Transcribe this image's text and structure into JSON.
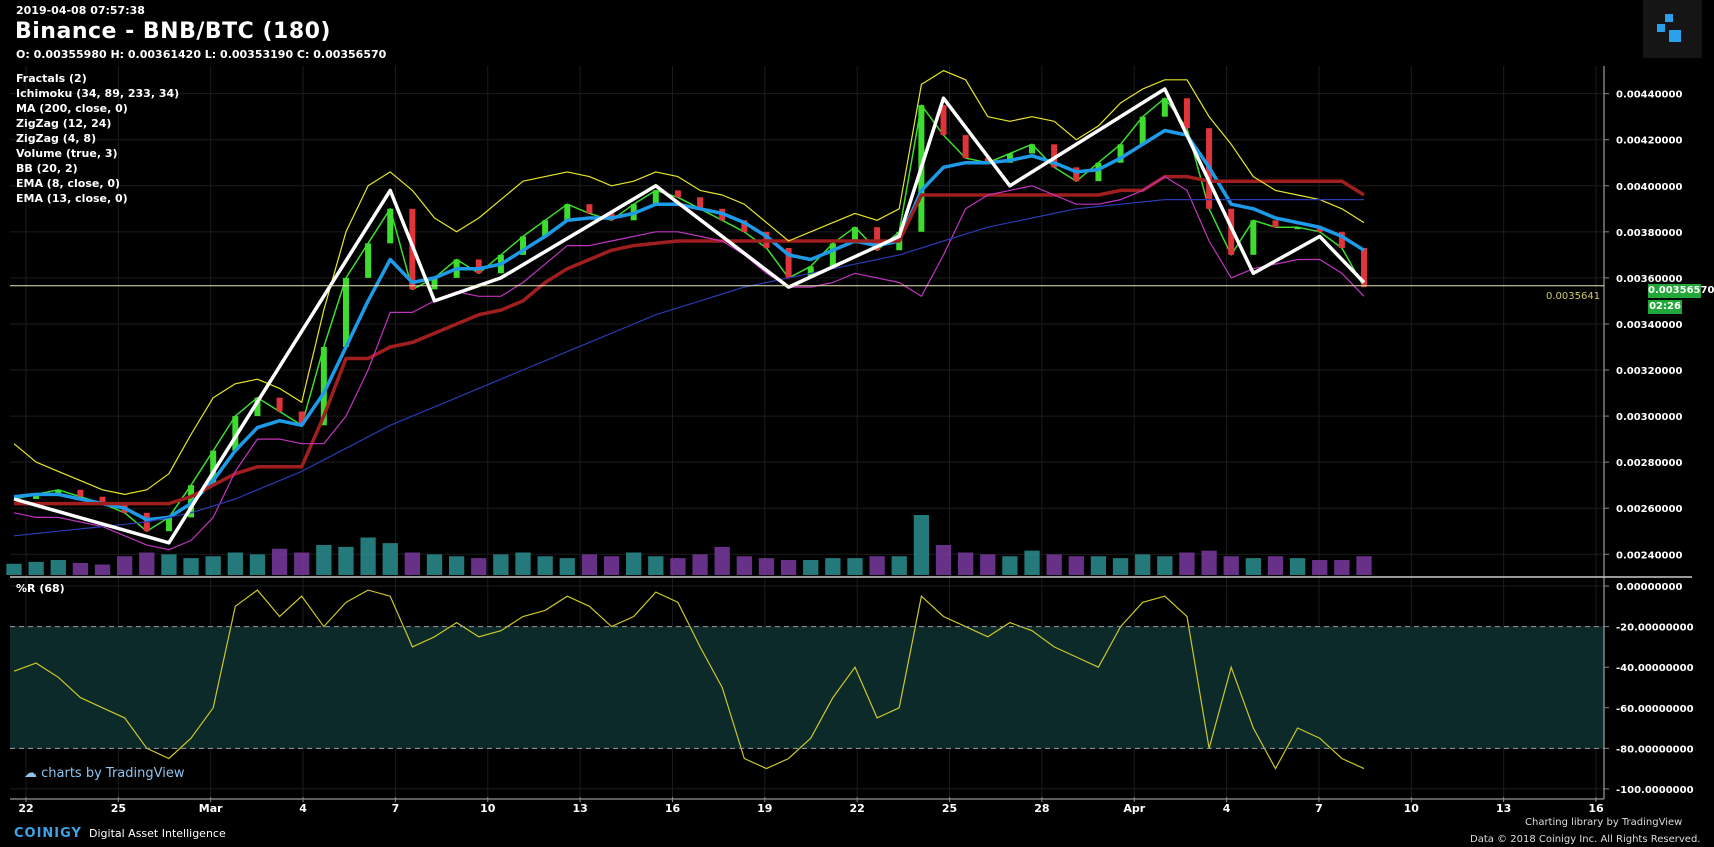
{
  "header": {
    "datetime": "2019-04-08 07:57:38",
    "title": "Binance - BNB/BTC (180)",
    "ohlc": "O: 0.00355980 H: 0.00361420 L: 0.00353190 C: 0.00356570"
  },
  "indicators": [
    "Fractals (2)",
    "Ichimoku (34, 89, 233, 34)",
    "MA (200, close, 0)",
    "ZigZag (12, 24)",
    "ZigZag (4, 8)",
    "Volume (true, 3)",
    "BB (20, 2)",
    "EMA (8, close, 0)",
    "EMA (13, close, 0)"
  ],
  "oscillator": {
    "title": "%R (68)"
  },
  "price_tags": {
    "last_price": "0.00356570",
    "countdown": "02:26",
    "line_value": "0.0035641"
  },
  "branding": {
    "tv_prefix": "charts by ",
    "tv_name": "TradingView",
    "coinigy": "COINIGY",
    "coinigy_tag": "Digital Asset Intelligence",
    "charting_lib": "Charting library by  TradingView",
    "copyright": "Data © 2018  Coinigy Inc. All Rights Reserved."
  },
  "colors": {
    "background": "#000000",
    "grid": "#1c1c1c",
    "up_candle": "#3ddc2f",
    "down_candle": "#e0343b",
    "zigzag": "#ffffff",
    "ema8": "#7a3be0",
    "ema13": "#1e9be8",
    "ichimoku_base": "#a01e1e",
    "bollinger": "#e6e62a",
    "bollinger_lower": "#c035c0",
    "ma200": "#2a3ab0",
    "williams_r": "#c9c62a",
    "oversold_band": "#0d2a2a",
    "price_tag": "#22a83a"
  },
  "chart_data": [
    {
      "type": "line",
      "title": "Binance - BNB/BTC (180)",
      "xlabel": "",
      "ylabel": "",
      "x_ticks": [
        "22",
        "25",
        "Mar",
        "4",
        "7",
        "10",
        "13",
        "16",
        "19",
        "22",
        "25",
        "28",
        "Apr",
        "4",
        "7",
        "10",
        "13",
        "16"
      ],
      "y_ticks": [
        "0.00240000",
        "0.00260000",
        "0.00280000",
        "0.00300000",
        "0.00320000",
        "0.00340000",
        "0.00360000",
        "0.00380000",
        "0.00400000",
        "0.00420000",
        "0.00440000"
      ],
      "ylim": [
        0.00231,
        0.00452
      ],
      "current_price": 0.0035657,
      "grid": true,
      "series": [
        {
          "key": "price",
          "values": [
            0.00264,
            0.00266,
            0.00268,
            0.00265,
            0.00262,
            0.00258,
            0.0025,
            0.00256,
            0.0027,
            0.00285,
            0.003,
            0.00308,
            0.00302,
            0.00296,
            0.0033,
            0.0036,
            0.00375,
            0.0039,
            0.00355,
            0.0036,
            0.00368,
            0.00362,
            0.0037,
            0.00378,
            0.00385,
            0.00392,
            0.00388,
            0.00385,
            0.00392,
            0.00398,
            0.00395,
            0.0039,
            0.00385,
            0.0038,
            0.00373,
            0.0036,
            0.00365,
            0.00375,
            0.00382,
            0.00372,
            0.0038,
            0.00435,
            0.00422,
            0.00412,
            0.0041,
            0.00414,
            0.00418,
            0.00408,
            0.00402,
            0.0041,
            0.00418,
            0.0043,
            0.00438,
            0.00425,
            0.0039,
            0.0037,
            0.00385,
            0.00382,
            0.00382,
            0.0038,
            0.00373,
            0.00356
          ]
        },
        {
          "key": "ema13",
          "values": [
            0.00265,
            0.00266,
            0.00266,
            0.00264,
            0.00262,
            0.0026,
            0.00255,
            0.00256,
            0.00262,
            0.00272,
            0.00285,
            0.00295,
            0.00298,
            0.00296,
            0.0031,
            0.0033,
            0.0035,
            0.00368,
            0.00358,
            0.0036,
            0.00364,
            0.00364,
            0.00366,
            0.00372,
            0.00378,
            0.00385,
            0.00386,
            0.00386,
            0.00388,
            0.00392,
            0.00392,
            0.0039,
            0.00388,
            0.00384,
            0.00378,
            0.0037,
            0.00368,
            0.00372,
            0.00376,
            0.00374,
            0.00376,
            0.00398,
            0.00408,
            0.0041,
            0.0041,
            0.00411,
            0.00413,
            0.0041,
            0.00406,
            0.00407,
            0.00412,
            0.00418,
            0.00424,
            0.00422,
            0.00408,
            0.00392,
            0.0039,
            0.00386,
            0.00384,
            0.00382,
            0.00378,
            0.00372
          ]
        },
        {
          "key": "kijun",
          "values": [
            0.00262,
            0.00262,
            0.00262,
            0.00262,
            0.00262,
            0.00262,
            0.00262,
            0.00262,
            0.00265,
            0.0027,
            0.00275,
            0.00278,
            0.00278,
            0.00278,
            0.003,
            0.00325,
            0.00325,
            0.0033,
            0.00332,
            0.00336,
            0.0034,
            0.00344,
            0.00346,
            0.0035,
            0.00358,
            0.00364,
            0.00368,
            0.00372,
            0.00374,
            0.00375,
            0.00376,
            0.00376,
            0.00376,
            0.00376,
            0.00376,
            0.00376,
            0.00376,
            0.00376,
            0.00376,
            0.00376,
            0.00376,
            0.00396,
            0.00396,
            0.00396,
            0.00396,
            0.00396,
            0.00396,
            0.00396,
            0.00396,
            0.00396,
            0.00398,
            0.00398,
            0.00404,
            0.00404,
            0.00402,
            0.00402,
            0.00402,
            0.00402,
            0.00402,
            0.00402,
            0.00402,
            0.00396
          ]
        },
        {
          "key": "bb_upper",
          "values": [
            0.00288,
            0.0028,
            0.00276,
            0.00272,
            0.00268,
            0.00266,
            0.00268,
            0.00275,
            0.00292,
            0.00308,
            0.00314,
            0.00316,
            0.00312,
            0.00306,
            0.00346,
            0.0038,
            0.004,
            0.00406,
            0.00398,
            0.00386,
            0.0038,
            0.00386,
            0.00394,
            0.00402,
            0.00404,
            0.00406,
            0.00404,
            0.004,
            0.00402,
            0.00406,
            0.00404,
            0.00398,
            0.00396,
            0.00392,
            0.00384,
            0.00376,
            0.0038,
            0.00384,
            0.00388,
            0.00385,
            0.0039,
            0.00444,
            0.0045,
            0.00446,
            0.0043,
            0.00428,
            0.0043,
            0.00428,
            0.0042,
            0.00426,
            0.00436,
            0.00442,
            0.00446,
            0.00446,
            0.0043,
            0.00418,
            0.00404,
            0.00398,
            0.00396,
            0.00394,
            0.0039,
            0.00384
          ]
        },
        {
          "key": "bb_lower",
          "values": [
            0.00258,
            0.00256,
            0.00256,
            0.00254,
            0.00252,
            0.00248,
            0.00244,
            0.00242,
            0.00246,
            0.00256,
            0.00276,
            0.0029,
            0.0029,
            0.00288,
            0.00288,
            0.003,
            0.0032,
            0.00345,
            0.00345,
            0.0035,
            0.00354,
            0.00352,
            0.00352,
            0.00358,
            0.00366,
            0.00374,
            0.00374,
            0.00376,
            0.00378,
            0.0038,
            0.0038,
            0.00378,
            0.00376,
            0.0037,
            0.00362,
            0.00356,
            0.00356,
            0.00358,
            0.00362,
            0.0036,
            0.00358,
            0.00352,
            0.0037,
            0.0039,
            0.00396,
            0.00398,
            0.004,
            0.00396,
            0.00392,
            0.00392,
            0.00394,
            0.00398,
            0.00404,
            0.00398,
            0.00376,
            0.0036,
            0.00364,
            0.00366,
            0.00368,
            0.00368,
            0.00362,
            0.00352
          ]
        },
        {
          "key": "ma200",
          "values": [
            0.00248,
            0.00249,
            0.0025,
            0.00251,
            0.00252,
            0.00253,
            0.00254,
            0.00256,
            0.00258,
            0.00261,
            0.00264,
            0.00268,
            0.00272,
            0.00276,
            0.00281,
            0.00286,
            0.00291,
            0.00296,
            0.003,
            0.00304,
            0.00308,
            0.00312,
            0.00316,
            0.0032,
            0.00324,
            0.00328,
            0.00332,
            0.00336,
            0.0034,
            0.00344,
            0.00347,
            0.0035,
            0.00353,
            0.00356,
            0.00358,
            0.0036,
            0.00362,
            0.00364,
            0.00366,
            0.00368,
            0.0037,
            0.00373,
            0.00376,
            0.00379,
            0.00382,
            0.00384,
            0.00386,
            0.00388,
            0.0039,
            0.00391,
            0.00392,
            0.00393,
            0.00394,
            0.00394,
            0.00394,
            0.00394,
            0.00394,
            0.00394,
            0.00394,
            0.00394,
            0.00394,
            0.00394
          ]
        },
        {
          "key": "zigzag",
          "points": [
            [
              0,
              0.00264
            ],
            [
              7,
              0.00245
            ],
            [
              17,
              0.00398
            ],
            [
              19,
              0.0035
            ],
            [
              22,
              0.0036
            ],
            [
              29,
              0.004
            ],
            [
              35,
              0.00356
            ],
            [
              40,
              0.00378
            ],
            [
              42,
              0.00438
            ],
            [
              45,
              0.004
            ],
            [
              52,
              0.00442
            ],
            [
              56,
              0.00362
            ],
            [
              59,
              0.00378
            ],
            [
              61,
              0.00358
            ]
          ]
        }
      ],
      "volume": [
        0.3,
        0.35,
        0.4,
        0.32,
        0.28,
        0.5,
        0.6,
        0.55,
        0.45,
        0.5,
        0.6,
        0.55,
        0.7,
        0.6,
        0.8,
        0.75,
        1.0,
        0.85,
        0.6,
        0.55,
        0.5,
        0.45,
        0.55,
        0.6,
        0.5,
        0.45,
        0.55,
        0.5,
        0.6,
        0.5,
        0.45,
        0.55,
        0.75,
        0.5,
        0.45,
        0.4,
        0.4,
        0.45,
        0.45,
        0.5,
        0.5,
        1.6,
        0.8,
        0.6,
        0.55,
        0.5,
        0.65,
        0.55,
        0.5,
        0.5,
        0.45,
        0.55,
        0.5,
        0.6,
        0.65,
        0.5,
        0.45,
        0.5,
        0.45,
        0.4,
        0.4,
        0.5
      ]
    },
    {
      "type": "line",
      "title": "%R (68)",
      "y_ticks": [
        "0.00000000",
        "-20.00000000",
        "-40.00000000",
        "-60.00000000",
        "-80.00000000",
        "-100.0000000"
      ],
      "ylim": [
        -104,
        2
      ],
      "levels": [
        -20,
        -80
      ],
      "values": [
        -42,
        -38,
        -45,
        -55,
        -60,
        -65,
        -80,
        -85,
        -75,
        -60,
        -10,
        -2,
        -15,
        -5,
        -20,
        -8,
        -2,
        -5,
        -30,
        -25,
        -18,
        -25,
        -22,
        -15,
        -12,
        -5,
        -10,
        -20,
        -15,
        -3,
        -8,
        -30,
        -50,
        -85,
        -90,
        -85,
        -75,
        -55,
        -40,
        -65,
        -60,
        -5,
        -15,
        -20,
        -25,
        -18,
        -22,
        -30,
        -35,
        -40,
        -20,
        -8,
        -5,
        -15,
        -80,
        -40,
        -70,
        -90,
        -70,
        -75,
        -85,
        -90
      ]
    }
  ]
}
